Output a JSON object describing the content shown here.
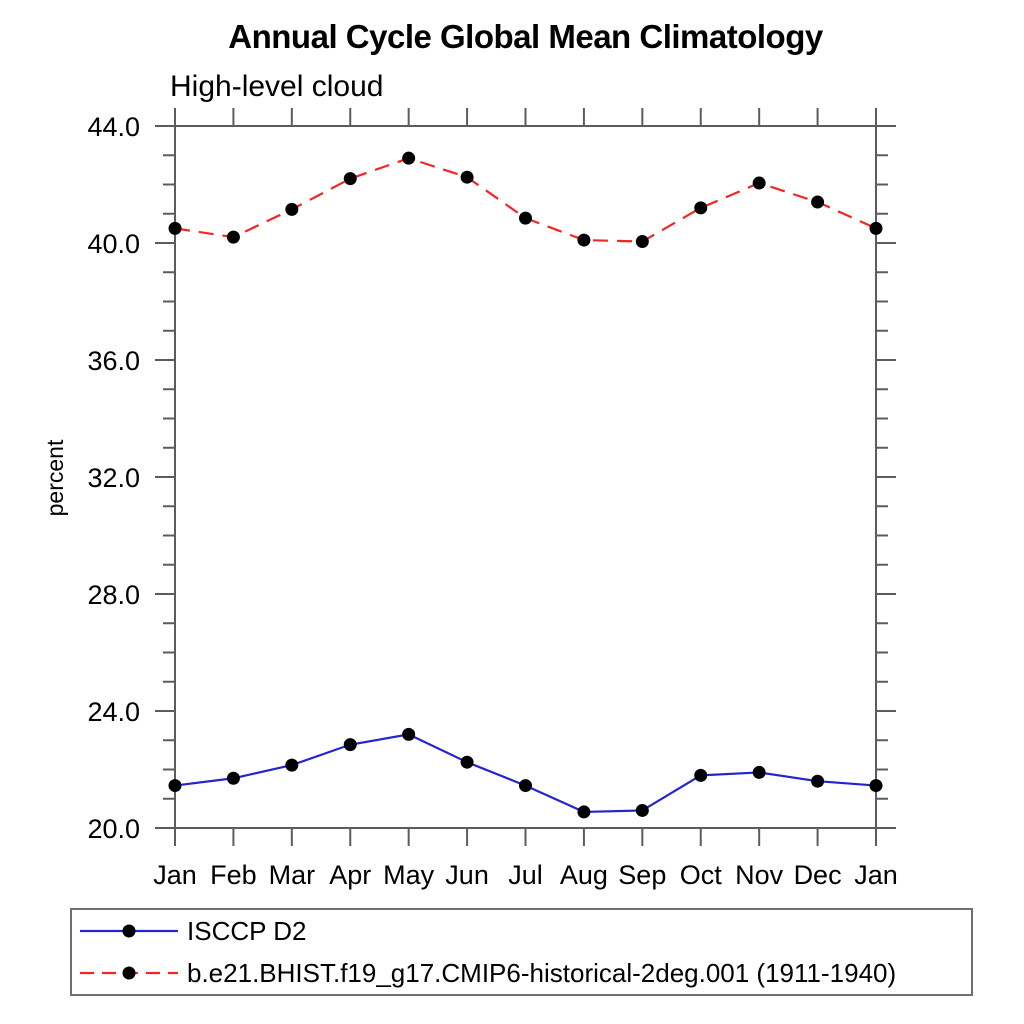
{
  "title": "Annual Cycle Global Mean Climatology",
  "subtitle": "High-level cloud",
  "legend": {
    "items": [
      {
        "label": "ISCCP D2",
        "color": "#2424d3",
        "dash": "solid"
      },
      {
        "label": "b.e21.BHIST.f19_g17.CMIP6-historical-2deg.001 (1911-1940)",
        "color": "#f42525",
        "dash": "dashed"
      }
    ]
  },
  "chart_data": {
    "type": "line",
    "title": "Annual Cycle Global Mean Climatology",
    "subtitle": "High-level cloud",
    "xlabel": "",
    "ylabel": "percent",
    "x": [
      "Jan",
      "Feb",
      "Mar",
      "Apr",
      "May",
      "Jun",
      "Jul",
      "Aug",
      "Sep",
      "Oct",
      "Nov",
      "Dec",
      "Jan"
    ],
    "series": [
      {
        "name": "ISCCP D2",
        "color": "#2424d3",
        "dash": "solid",
        "marker": "circle",
        "values": [
          21.45,
          21.7,
          22.15,
          22.85,
          23.2,
          22.25,
          21.45,
          20.55,
          20.6,
          21.8,
          21.9,
          21.6,
          21.45
        ]
      },
      {
        "name": "b.e21.BHIST.f19_g17.CMIP6-historical-2deg.001 (1911-1940)",
        "color": "#f42525",
        "dash": "dashed",
        "marker": "circle",
        "values": [
          40.5,
          40.2,
          41.15,
          42.2,
          42.9,
          42.25,
          40.85,
          40.1,
          40.05,
          41.2,
          42.05,
          41.4,
          40.5
        ]
      }
    ],
    "ylim": [
      20,
      44
    ],
    "ytick_major_values": [
      20,
      24,
      28,
      32,
      36,
      40,
      44
    ],
    "ytick_major_labels": [
      "20.0",
      "24.0",
      "28.0",
      "32.0",
      "36.0",
      "40.0",
      "44.0"
    ],
    "ytick_minor_step": 1,
    "grid": false,
    "legend_position": "bottom",
    "marker_color": "#000000",
    "axis_color": "#5c5c5c"
  }
}
